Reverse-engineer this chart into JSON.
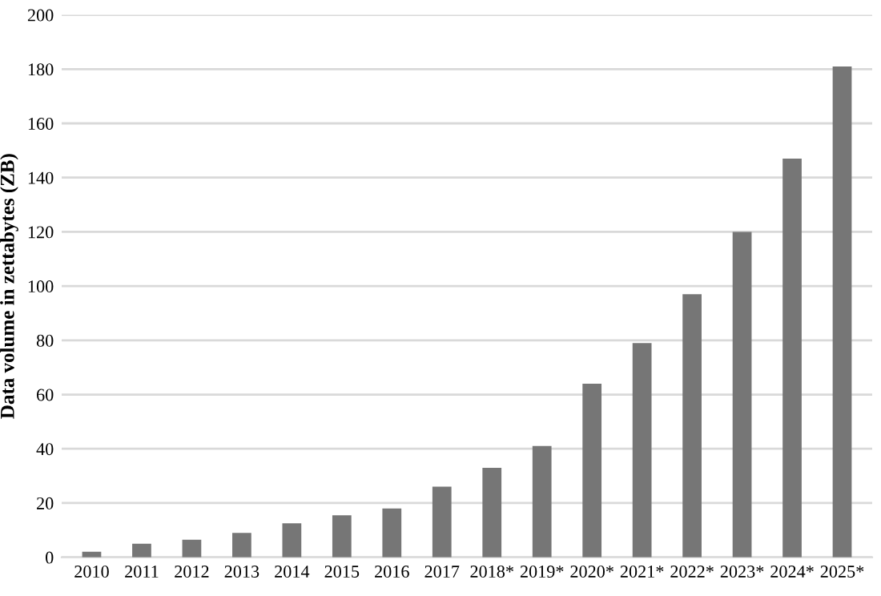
{
  "chart_data": {
    "type": "bar",
    "ylabel": "Data volume in zettabytes (ZB)",
    "categories": [
      "2010",
      "2011",
      "2012",
      "2013",
      "2014",
      "2015",
      "2016",
      "2017",
      "2018*",
      "2019*",
      "2020*",
      "2021*",
      "2022*",
      "2023*",
      "2024*",
      "2025*"
    ],
    "values": [
      2,
      5,
      6.5,
      9,
      12.5,
      15.5,
      18,
      26,
      33,
      41,
      64,
      79,
      97,
      120,
      147,
      181
    ],
    "color": "#767676",
    "ylim": [
      0,
      200
    ],
    "yticks": [
      0,
      20,
      40,
      60,
      80,
      100,
      120,
      140,
      160,
      180,
      200
    ],
    "grid": "y"
  }
}
